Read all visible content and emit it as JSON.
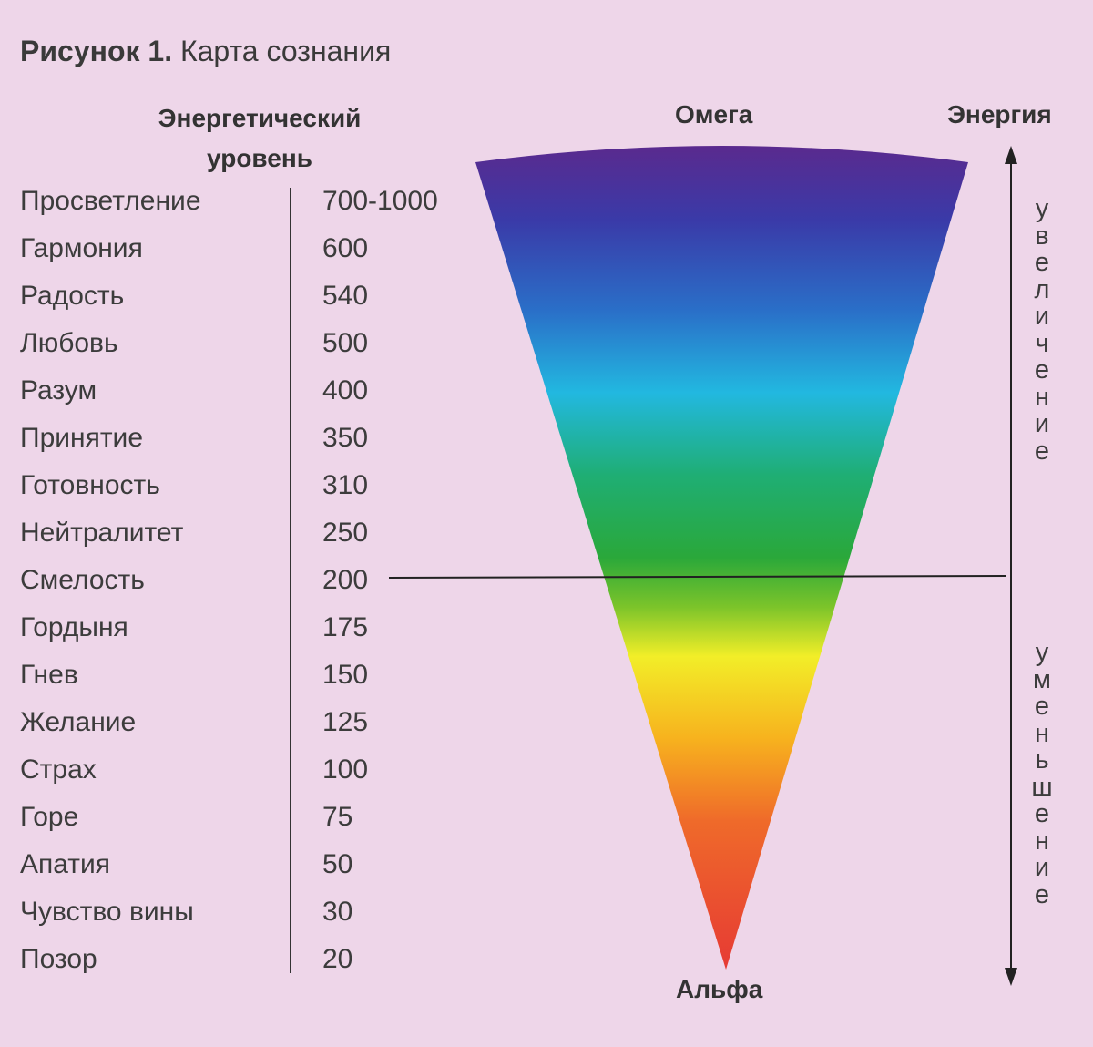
{
  "figure": {
    "label": "Рисунок 1.",
    "title": "Карта сознания"
  },
  "header": {
    "line1": "Энергетический",
    "line2": "уровень"
  },
  "levels": [
    {
      "name": "Просветление",
      "value": "700-1000"
    },
    {
      "name": "Гармония",
      "value": "600"
    },
    {
      "name": "Радость",
      "value": "540"
    },
    {
      "name": "Любовь",
      "value": "500"
    },
    {
      "name": "Разум",
      "value": "400"
    },
    {
      "name": "Принятие",
      "value": "350"
    },
    {
      "name": "Готовность",
      "value": "310"
    },
    {
      "name": "Нейтралитет",
      "value": "250"
    },
    {
      "name": "Смелость",
      "value": "200"
    },
    {
      "name": "Гордыня",
      "value": "175"
    },
    {
      "name": "Гнев",
      "value": "150"
    },
    {
      "name": "Желание",
      "value": "125"
    },
    {
      "name": "Страх",
      "value": "100"
    },
    {
      "name": "Горе",
      "value": "75"
    },
    {
      "name": "Апатия",
      "value": "50"
    },
    {
      "name": "Чувство вины",
      "value": "30"
    },
    {
      "name": "Позор",
      "value": "20"
    }
  ],
  "cone": {
    "top_label": "Омега",
    "bottom_label": "Альфа",
    "colors": [
      "#5a2a8e",
      "#3a3aa8",
      "#2a6fc8",
      "#22b8e0",
      "#1fae74",
      "#2aa83a",
      "#7cc42a",
      "#f2ee28",
      "#f7b21e",
      "#ef6a2a",
      "#e63a34"
    ]
  },
  "axis": {
    "title": "Энергия",
    "upper_word": "увеличение",
    "lower_word": "уменьшение"
  }
}
